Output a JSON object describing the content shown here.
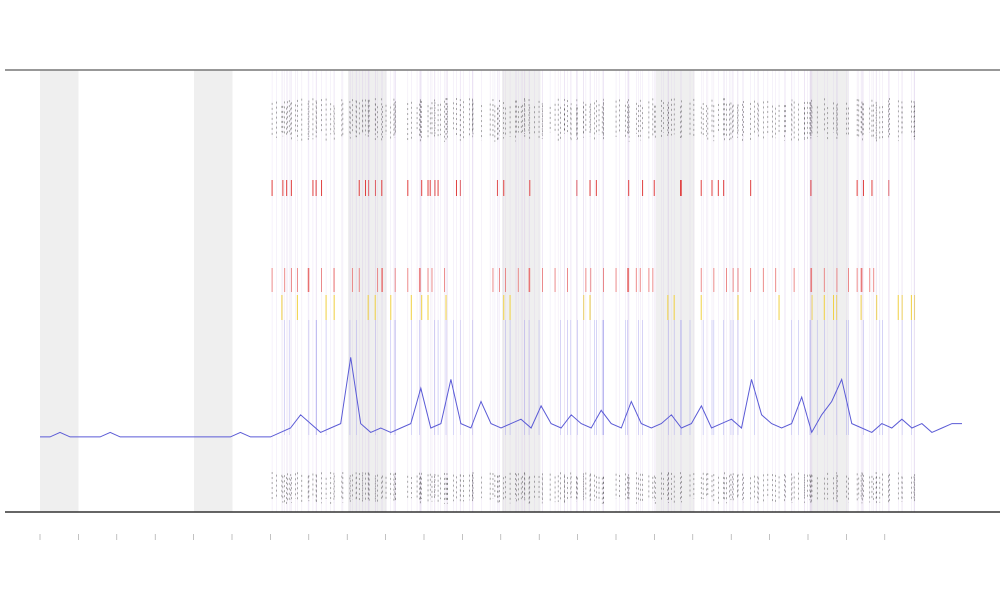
{
  "chart_data": {
    "type": "line",
    "series": [
      {
        "color": "#5b5bd6",
        "values": [
          0.17,
          0.17,
          0.18,
          0.17,
          0.17,
          0.17,
          0.17,
          0.18,
          0.17,
          0.17,
          0.17,
          0.17,
          0.17,
          0.17,
          0.17,
          0.17,
          0.17,
          0.17,
          0.17,
          0.17,
          0.18,
          0.17,
          0.17,
          0.17,
          0.18,
          0.19,
          0.22,
          0.2,
          0.18,
          0.19,
          0.2,
          0.35,
          0.2,
          0.18,
          0.19,
          0.18,
          0.19,
          0.2,
          0.28,
          0.19,
          0.2,
          0.3,
          0.2,
          0.19,
          0.25,
          0.2,
          0.19,
          0.2,
          0.21,
          0.19,
          0.24,
          0.2,
          0.19,
          0.22,
          0.2,
          0.19,
          0.23,
          0.2,
          0.19,
          0.25,
          0.2,
          0.19,
          0.2,
          0.22,
          0.19,
          0.2,
          0.24,
          0.19,
          0.2,
          0.21,
          0.19,
          0.3,
          0.22,
          0.2,
          0.19,
          0.2,
          0.26,
          0.18,
          0.22,
          0.25,
          0.3,
          0.2,
          0.19,
          0.18,
          0.2,
          0.19,
          0.21,
          0.19,
          0.2,
          0.18,
          0.19,
          0.2,
          0.2
        ]
      }
    ],
    "ylim": [
      0,
      1
    ]
  }
}
